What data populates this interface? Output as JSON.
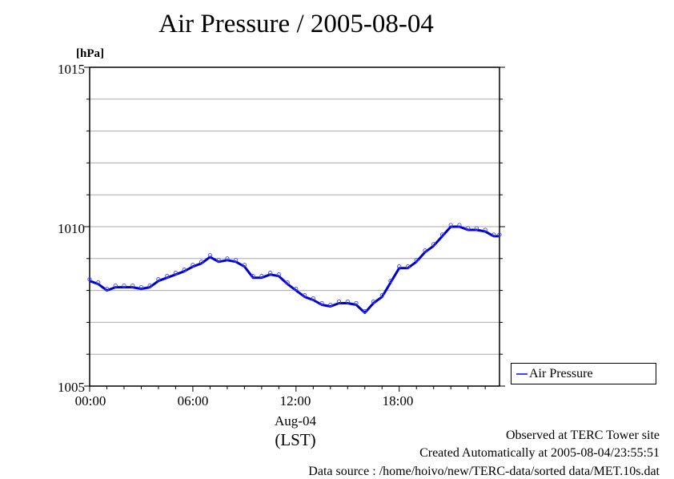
{
  "chart_data": {
    "type": "line",
    "title": "Air Pressure / 2005-08-04",
    "ylabel": "[hPa]",
    "xlabel_date": "Aug-04",
    "xlabel_tz": "(LST)",
    "ylim": [
      1005,
      1015
    ],
    "xlim_hours": [
      0,
      23.83
    ],
    "y_ticks": [
      "1015",
      "1010",
      "1005"
    ],
    "x_ticks": [
      "00:00",
      "06:00",
      "12:00",
      "18:00"
    ],
    "grid": true,
    "legend_position": "right",
    "colors": {
      "series": "#4444ff",
      "line": "#0000cc"
    },
    "series": [
      {
        "name": "Air Pressure",
        "x": [
          0,
          0.5,
          1.0,
          1.5,
          2.0,
          2.5,
          3.0,
          3.5,
          4.0,
          4.5,
          5.0,
          5.5,
          6.0,
          6.5,
          7.0,
          7.5,
          8.0,
          8.5,
          9.0,
          9.5,
          10.0,
          10.5,
          11.0,
          11.5,
          12.0,
          12.5,
          13.0,
          13.5,
          14.0,
          14.5,
          15.0,
          15.5,
          16.0,
          16.5,
          17.0,
          17.5,
          18.0,
          18.5,
          19.0,
          19.5,
          20.0,
          20.5,
          21.0,
          21.5,
          22.0,
          22.5,
          23.0,
          23.5,
          23.83
        ],
        "values": [
          1008.3,
          1008.2,
          1008.0,
          1008.1,
          1008.1,
          1008.1,
          1008.05,
          1008.1,
          1008.3,
          1008.4,
          1008.5,
          1008.6,
          1008.75,
          1008.85,
          1009.05,
          1008.9,
          1008.95,
          1008.9,
          1008.75,
          1008.4,
          1008.4,
          1008.5,
          1008.45,
          1008.2,
          1008.0,
          1007.8,
          1007.7,
          1007.55,
          1007.5,
          1007.6,
          1007.6,
          1007.55,
          1007.3,
          1007.6,
          1007.8,
          1008.25,
          1008.7,
          1008.7,
          1008.9,
          1009.2,
          1009.4,
          1009.7,
          1010.0,
          1010.0,
          1009.9,
          1009.9,
          1009.85,
          1009.7,
          1009.7
        ]
      }
    ]
  },
  "footer": {
    "observed": "Observed at TERC Tower site",
    "created": "Created Automatically at 2005-08-04/23:55:51",
    "source": "Data source : /home/hoivo/new/TERC-data/sorted  data/MET.10s.dat"
  }
}
